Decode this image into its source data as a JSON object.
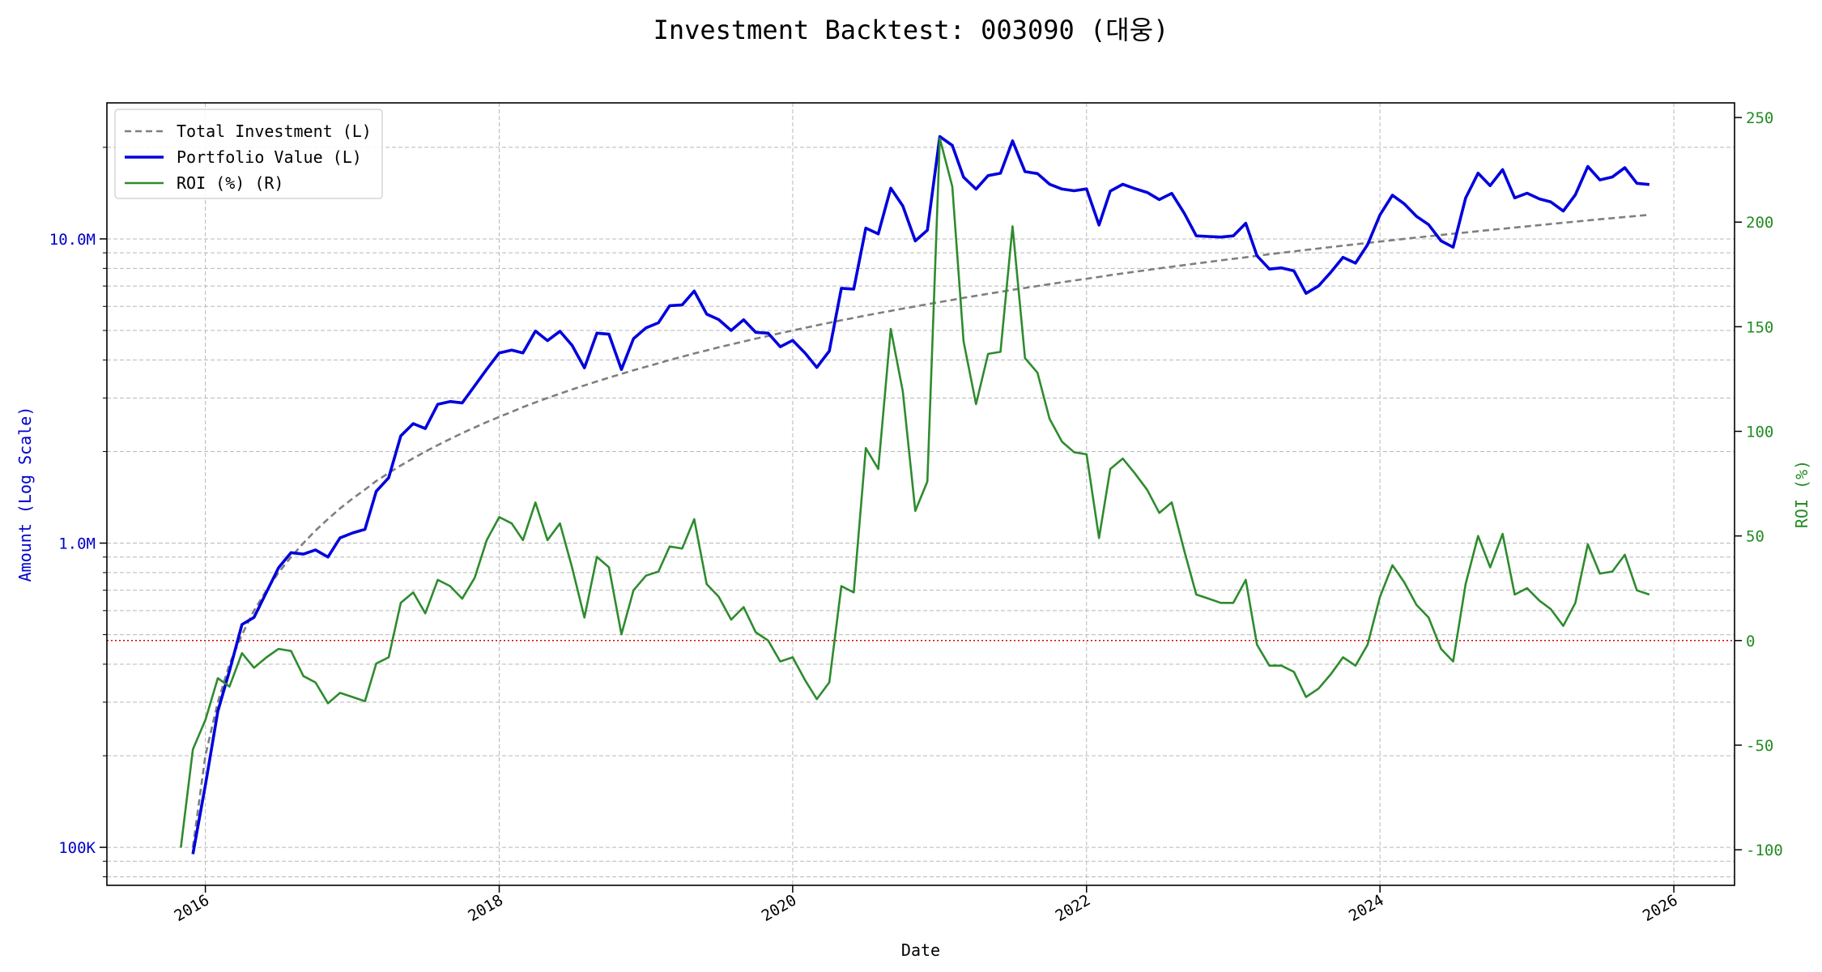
{
  "chart_data": {
    "type": "line",
    "title": "Investment Backtest: 003090 (대웅)",
    "xlabel": "Date",
    "ylabel_left": "Amount (Log Scale)",
    "ylabel_right": "ROI (%)",
    "left_scale": "log",
    "left_ylim": [
      75000,
      28000000
    ],
    "right_ylim": [
      -117,
      257
    ],
    "x_range": [
      "2015-05-01",
      "2026-06-01"
    ],
    "x_ticks": [
      "2016",
      "2018",
      "2020",
      "2022",
      "2024",
      "2026"
    ],
    "left_ticks": [
      {
        "value": 100000,
        "label": "100K"
      },
      {
        "value": 1000000,
        "label": "1.0M"
      },
      {
        "value": 10000000,
        "label": "10.0M"
      }
    ],
    "right_ticks": [
      -100,
      -50,
      0,
      50,
      100,
      150,
      200,
      250
    ],
    "grid": true,
    "legend_position": "top-left",
    "reference_line": {
      "axis": "right",
      "value": 0,
      "color": "#dd0000",
      "style": "dotted"
    },
    "colors": {
      "left_axis": "#0000cc",
      "right_axis": "#228b22",
      "total_investment": "#7f7f7f",
      "portfolio_value": "#0000dd",
      "roi": "#2e8b2e"
    },
    "dates": [
      "2015-11-01",
      "2015-12-01",
      "2016-01-01",
      "2016-02-01",
      "2016-03-01",
      "2016-04-01",
      "2016-05-01",
      "2016-06-01",
      "2016-07-01",
      "2016-08-01",
      "2016-09-01",
      "2016-10-01",
      "2016-11-01",
      "2016-12-01",
      "2017-01-01",
      "2017-02-01",
      "2017-03-01",
      "2017-04-01",
      "2017-05-01",
      "2017-06-01",
      "2017-07-01",
      "2017-08-01",
      "2017-09-01",
      "2017-10-01",
      "2017-11-01",
      "2017-12-01",
      "2018-01-01",
      "2018-02-01",
      "2018-03-01",
      "2018-04-01",
      "2018-05-01",
      "2018-06-01",
      "2018-07-01",
      "2018-08-01",
      "2018-09-01",
      "2018-10-01",
      "2018-11-01",
      "2018-12-01",
      "2019-01-01",
      "2019-02-01",
      "2019-03-01",
      "2019-04-01",
      "2019-05-01",
      "2019-06-01",
      "2019-07-01",
      "2019-08-01",
      "2019-09-01",
      "2019-10-01",
      "2019-11-01",
      "2019-12-01",
      "2020-01-01",
      "2020-02-01",
      "2020-03-01",
      "2020-04-01",
      "2020-05-01",
      "2020-06-01",
      "2020-07-01",
      "2020-08-01",
      "2020-09-01",
      "2020-10-01",
      "2020-11-01",
      "2020-12-01",
      "2021-01-01",
      "2021-02-01",
      "2021-03-01",
      "2021-04-01",
      "2021-05-01",
      "2021-06-01",
      "2021-07-01",
      "2021-08-01",
      "2021-09-01",
      "2021-10-01",
      "2021-11-01",
      "2021-12-01",
      "2022-01-01",
      "2022-02-01",
      "2022-03-01",
      "2022-04-01",
      "2022-05-01",
      "2022-06-01",
      "2022-07-01",
      "2022-08-01",
      "2022-09-01",
      "2022-10-01",
      "2022-11-01",
      "2022-12-01",
      "2023-01-01",
      "2023-02-01",
      "2023-03-01",
      "2023-04-01",
      "2023-05-01",
      "2023-06-01",
      "2023-07-01",
      "2023-08-01",
      "2023-09-01",
      "2023-10-01",
      "2023-11-01",
      "2023-12-01",
      "2024-01-01",
      "2024-02-01",
      "2024-03-01",
      "2024-04-01",
      "2024-05-01",
      "2024-06-01",
      "2024-07-01",
      "2024-08-01",
      "2024-09-01",
      "2024-10-01",
      "2024-11-01",
      "2024-12-01",
      "2025-01-01",
      "2025-02-01",
      "2025-03-01",
      "2025-04-01",
      "2025-05-01",
      "2025-06-01",
      "2025-07-01",
      "2025-08-01",
      "2025-09-01",
      "2025-10-01",
      "2025-11-01"
    ],
    "series": [
      {
        "name": "Total Investment (L)",
        "axis": "left",
        "style": "dashed",
        "values": [
          0,
          100000,
          200000,
          300000,
          400000,
          500000,
          600000,
          700000,
          800000,
          900000,
          1000000,
          1100000,
          1200000,
          1300000,
          1400000,
          1500000,
          1600000,
          1700000,
          1800000,
          1900000,
          2000000,
          2100000,
          2200000,
          2300000,
          2400000,
          2500000,
          2600000,
          2700000,
          2800000,
          2900000,
          3000000,
          3100000,
          3200000,
          3300000,
          3400000,
          3500000,
          3600000,
          3700000,
          3800000,
          3900000,
          4000000,
          4100000,
          4200000,
          4300000,
          4400000,
          4500000,
          4600000,
          4700000,
          4800000,
          4900000,
          5000000,
          5100000,
          5200000,
          5300000,
          5400000,
          5500000,
          5600000,
          5700000,
          5800000,
          5900000,
          6000000,
          6100000,
          6200000,
          6300000,
          6400000,
          6500000,
          6600000,
          6700000,
          6800000,
          6900000,
          7000000,
          7100000,
          7200000,
          7300000,
          7400000,
          7500000,
          7600000,
          7700000,
          7800000,
          7900000,
          8000000,
          8100000,
          8200000,
          8300000,
          8400000,
          8500000,
          8600000,
          8700000,
          8800000,
          8900000,
          9000000,
          9100000,
          9200000,
          9300000,
          9400000,
          9500000,
          9600000,
          9700000,
          9800000,
          9900000,
          10000000,
          10100000,
          10200000,
          10300000,
          10400000,
          10500000,
          10600000,
          10700000,
          10800000,
          10900000,
          11000000,
          11100000,
          11200000,
          11300000,
          11400000,
          11500000,
          11600000,
          11700000,
          11800000,
          11900000,
          12000000
        ]
      },
      {
        "name": "Portfolio Value (L)",
        "axis": "left",
        "style": "solid",
        "values": [
          0,
          95000,
          160000,
          280000,
          380000,
          540000,
          570000,
          690000,
          830000,
          930000,
          920000,
          950000,
          900000,
          1040000,
          1080000,
          1110000,
          1480000,
          1640000,
          2250000,
          2470000,
          2380000,
          2860000,
          2920000,
          2890000,
          3290000,
          3730000,
          4220000,
          4310000,
          4220000,
          4980000,
          4630000,
          4970000,
          4470000,
          3770000,
          4900000,
          4860000,
          3720000,
          4700000,
          5100000,
          5300000,
          6030000,
          6070000,
          6740000,
          5660000,
          5430000,
          5000000,
          5420000,
          4930000,
          4900000,
          4420000,
          4640000,
          4210000,
          3780000,
          4280000,
          6880000,
          6840000,
          10850000,
          10390000,
          14680000,
          12830000,
          9850000,
          10680000,
          21700000,
          20300000,
          15960000,
          14570000,
          16150000,
          16440000,
          21000000,
          16640000,
          16400000,
          15130000,
          14580000,
          14400000,
          14600000,
          11110000,
          14360000,
          15120000,
          14640000,
          14210000,
          13470000,
          14120000,
          12150000,
          10230000,
          10180000,
          10140000,
          10230000,
          11250000,
          8800000,
          7960000,
          8030000,
          7850000,
          6620000,
          7000000,
          7780000,
          8700000,
          8320000,
          9570000,
          12000000,
          13920000,
          13060000,
          11860000,
          11140000,
          9850000,
          9390000,
          13620000,
          16450000,
          14960000,
          16900000,
          13640000,
          14130000,
          13530000,
          13230000,
          12350000,
          13960000,
          17300000,
          15630000,
          15980000,
          17150000,
          15230000,
          15090000
        ]
      },
      {
        "name": "ROI (%) (R)",
        "axis": "right",
        "style": "solid",
        "values": [
          -99,
          -52,
          -38,
          -18,
          -22,
          -6,
          -13,
          -8,
          -4,
          -5,
          -17,
          -20,
          -30,
          -25,
          -27,
          -29,
          -11,
          -8,
          18,
          23,
          13,
          29,
          26,
          20,
          30,
          48,
          59,
          56,
          48,
          66,
          48,
          56,
          35,
          11,
          40,
          35,
          3,
          24,
          31,
          33,
          45,
          44,
          58,
          27,
          21,
          10,
          16,
          4,
          0,
          -10,
          -8,
          -19,
          -28,
          -20,
          26,
          23,
          92,
          82,
          149,
          119,
          62,
          76,
          240,
          217,
          143,
          113,
          137,
          138,
          198,
          135,
          128,
          106,
          95,
          90,
          89,
          49,
          82,
          87,
          80,
          72,
          61,
          66,
          43,
          22,
          20,
          18,
          18,
          29,
          -2,
          -12,
          -12,
          -15,
          -27,
          -23,
          -16,
          -8,
          -12,
          -2,
          21,
          36,
          28,
          17,
          11,
          -4,
          -10,
          27,
          50,
          35,
          51,
          22,
          25,
          19,
          15,
          7,
          18,
          46,
          32,
          33,
          41,
          24,
          22
        ]
      }
    ]
  }
}
